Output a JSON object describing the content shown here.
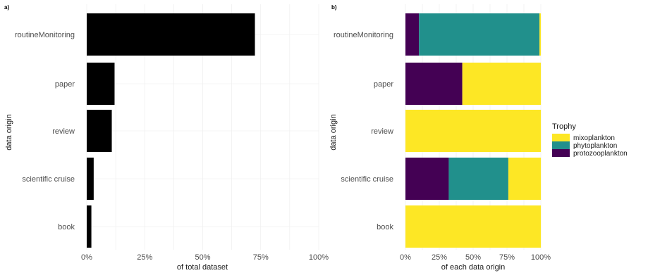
{
  "chart_data": [
    {
      "panel": "a)",
      "type": "bar",
      "orientation": "horizontal",
      "categories": [
        "routineMonitoring",
        "paper",
        "review",
        "scientific cruise",
        "book"
      ],
      "values": [
        0.725,
        0.12,
        0.108,
        0.03,
        0.02
      ],
      "bar_color": "#000000",
      "xlabel": "of total dataset",
      "ylabel": "data origin",
      "xlim": [
        0,
        1
      ],
      "xticks": [
        0,
        0.25,
        0.5,
        0.75,
        1
      ],
      "xtick_labels": [
        "0%",
        "25%",
        "50%",
        "75%",
        "100%"
      ],
      "grid": true
    },
    {
      "panel": "b)",
      "type": "bar",
      "orientation": "horizontal",
      "stacked": true,
      "categories": [
        "routineMonitoring",
        "paper",
        "review",
        "scientific cruise",
        "book"
      ],
      "series": [
        {
          "name": "protozooplankton",
          "color": "#440154",
          "values": [
            0.1,
            0.42,
            0.0,
            0.32,
            0.0
          ]
        },
        {
          "name": "phytoplankton",
          "color": "#21908C",
          "values": [
            0.89,
            0.0,
            0.0,
            0.44,
            0.0
          ]
        },
        {
          "name": "mixoplankton",
          "color": "#FDE725",
          "values": [
            0.01,
            0.58,
            1.0,
            0.24,
            1.0
          ]
        }
      ],
      "xlabel": "of each data origin",
      "ylabel": "data origin",
      "xlim": [
        0,
        1
      ],
      "xticks": [
        0,
        0.25,
        0.5,
        0.75,
        1
      ],
      "xtick_labels": [
        "0%",
        "25%",
        "50%",
        "75%",
        "100%"
      ],
      "grid": true,
      "legend": {
        "title": "Trophy",
        "placement": "right",
        "entries": [
          {
            "label": "mixoplankton",
            "color": "#FDE725"
          },
          {
            "label": "phytoplankton",
            "color": "#21908C"
          },
          {
            "label": "protozooplankton",
            "color": "#440154"
          }
        ]
      }
    }
  ]
}
